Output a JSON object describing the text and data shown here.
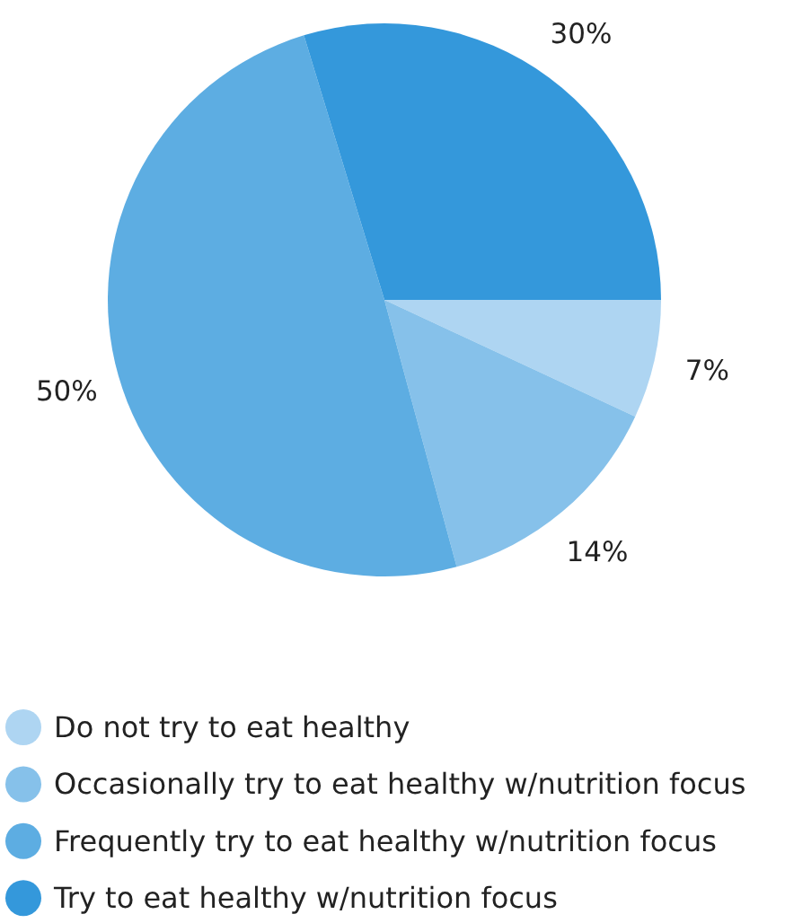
{
  "chart_data": {
    "type": "pie",
    "categories": [
      "Do not try to eat healthy",
      "Occasionally try to eat healthy w/nutrition focus",
      "Frequently try to eat healthy w/nutrition focus",
      "Try to eat healthy w/nutrition focus"
    ],
    "values": [
      7,
      14,
      50,
      30
    ],
    "value_labels": [
      "7%",
      "14%",
      "50%",
      "30%"
    ],
    "colors": [
      "#aed5f2",
      "#86c1ea",
      "#5dade2",
      "#3498db"
    ],
    "legend": "bottom"
  }
}
